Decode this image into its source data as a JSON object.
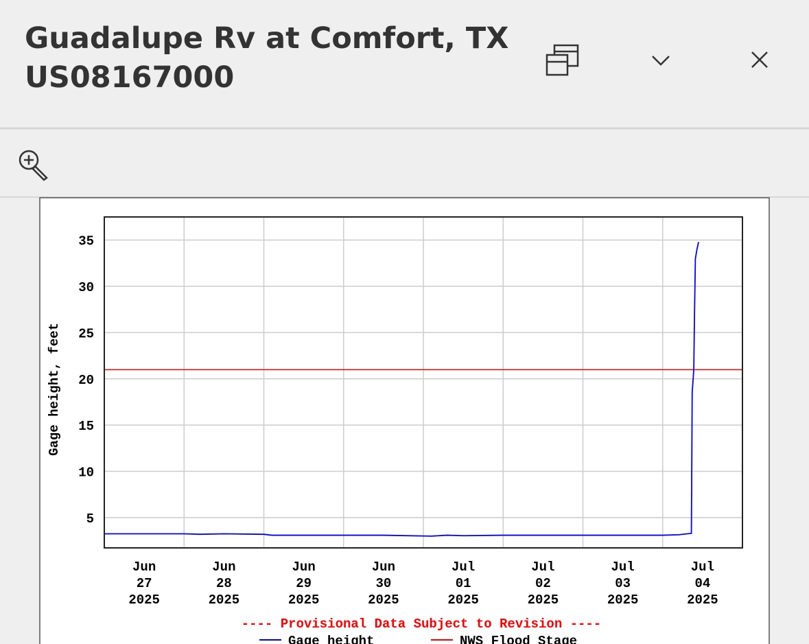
{
  "header": {
    "title": "Guadalupe Rv at Comfort, TX",
    "subtitle": "US08167000"
  },
  "chart_data": {
    "type": "line",
    "ylabel": "Gage height, feet",
    "note": "---- Provisional Data Subject to Revision ----",
    "xlim": [
      0,
      8
    ],
    "x_gridlines": [
      1,
      2,
      3,
      4,
      5,
      6,
      7
    ],
    "xticks": [
      {
        "value": 0.5,
        "label": [
          "Jun",
          "27",
          "2025"
        ]
      },
      {
        "value": 1.5,
        "label": [
          "Jun",
          "28",
          "2025"
        ]
      },
      {
        "value": 2.5,
        "label": [
          "Jun",
          "29",
          "2025"
        ]
      },
      {
        "value": 3.5,
        "label": [
          "Jun",
          "30",
          "2025"
        ]
      },
      {
        "value": 4.5,
        "label": [
          "Jul",
          "01",
          "2025"
        ]
      },
      {
        "value": 5.5,
        "label": [
          "Jul",
          "02",
          "2025"
        ]
      },
      {
        "value": 6.5,
        "label": [
          "Jul",
          "03",
          "2025"
        ]
      },
      {
        "value": 7.5,
        "label": [
          "Jul",
          "04",
          "2025"
        ]
      }
    ],
    "ylim": [
      1.73,
      37.5
    ],
    "yticks": [
      5,
      10,
      15,
      20,
      25,
      30,
      35
    ],
    "grid": true,
    "x": [
      0,
      0.5,
      1.0,
      1.2,
      1.5,
      2.0,
      2.1,
      3.0,
      3.5,
      4.1,
      4.3,
      4.5,
      5,
      6,
      7,
      7.2,
      7.36,
      7.37,
      7.39,
      7.4,
      7.41,
      7.43,
      7.45
    ],
    "series": [
      {
        "name": "Gage height",
        "color": "#0000ff",
        "values": [
          3.25,
          3.25,
          3.25,
          3.2,
          3.25,
          3.2,
          3.1,
          3.1,
          3.1,
          3.0,
          3.1,
          3.05,
          3.1,
          3.1,
          3.1,
          3.15,
          3.3,
          18.5,
          21,
          27.5,
          33,
          34,
          34.8
        ]
      }
    ],
    "reference_lines": [
      {
        "name": "NWS Flood Stage",
        "color": "#ff0000",
        "value": 21
      }
    ]
  }
}
